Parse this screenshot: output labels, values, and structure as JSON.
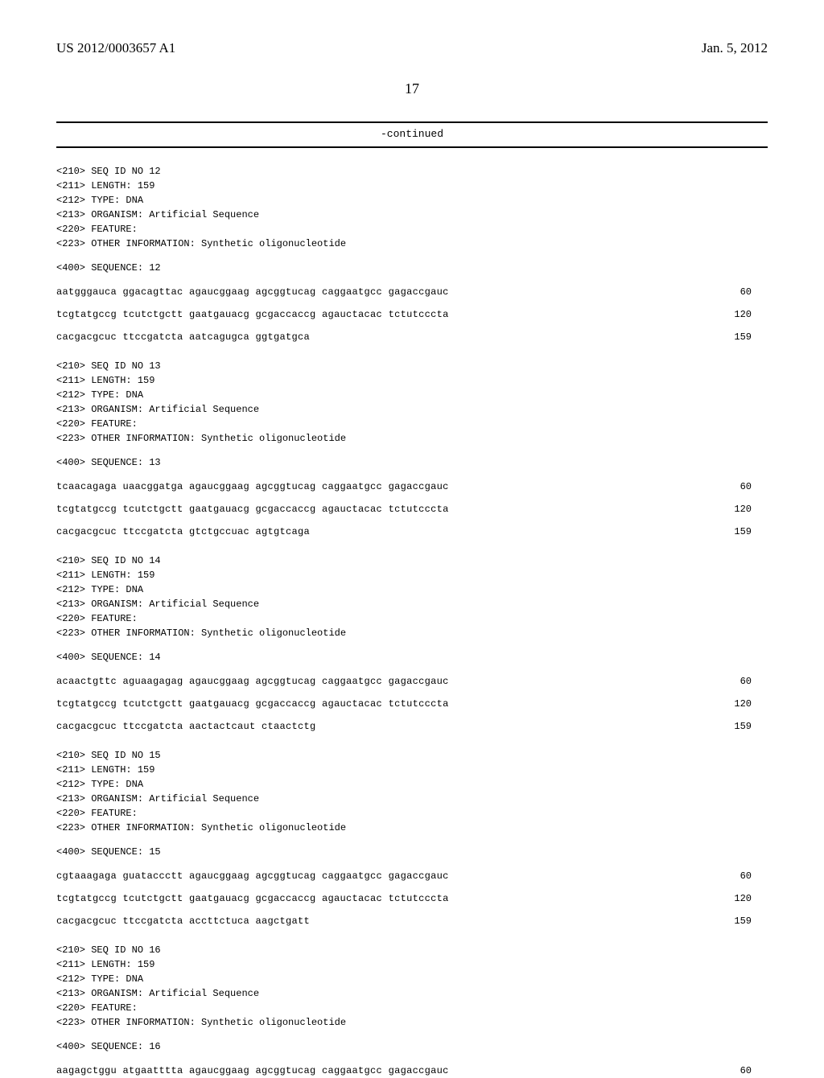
{
  "header": {
    "pub_number": "US 2012/0003657 A1",
    "pub_date": "Jan. 5, 2012",
    "page_num": "17"
  },
  "continued_label": "-continued",
  "sequences": [
    {
      "id": "12",
      "length": "159",
      "type": "DNA",
      "organism": "Artificial Sequence",
      "feature": "",
      "other_info": "Synthetic oligonucleotide",
      "rows": [
        {
          "text": "aatgggauca ggacagttac agaucggaag agcggtucag caggaatgcc gagaccgauc",
          "pos": "60"
        },
        {
          "text": "tcgtatgccg tcutctgctt gaatgauacg gcgaccaccg agauctacac tctutcccta",
          "pos": "120"
        },
        {
          "text": "cacgacgcuc ttccgatcta aatcagugca ggtgatgca",
          "pos": "159"
        }
      ]
    },
    {
      "id": "13",
      "length": "159",
      "type": "DNA",
      "organism": "Artificial Sequence",
      "feature": "",
      "other_info": "Synthetic oligonucleotide",
      "rows": [
        {
          "text": "tcaacagaga uaacggatga agaucggaag agcggtucag caggaatgcc gagaccgauc",
          "pos": "60"
        },
        {
          "text": "tcgtatgccg tcutctgctt gaatgauacg gcgaccaccg agauctacac tctutcccta",
          "pos": "120"
        },
        {
          "text": "cacgacgcuc ttccgatcta gtctgccuac agtgtcaga",
          "pos": "159"
        }
      ]
    },
    {
      "id": "14",
      "length": "159",
      "type": "DNA",
      "organism": "Artificial Sequence",
      "feature": "",
      "other_info": "Synthetic oligonucleotide",
      "rows": [
        {
          "text": "acaactgttc aguaagagag agaucggaag agcggtucag caggaatgcc gagaccgauc",
          "pos": "60"
        },
        {
          "text": "tcgtatgccg tcutctgctt gaatgauacg gcgaccaccg agauctacac tctutcccta",
          "pos": "120"
        },
        {
          "text": "cacgacgcuc ttccgatcta aactactcaut ctaactctg",
          "pos": "159"
        }
      ]
    },
    {
      "id": "15",
      "length": "159",
      "type": "DNA",
      "organism": "Artificial Sequence",
      "feature": "",
      "other_info": "Synthetic oligonucleotide",
      "rows": [
        {
          "text": "cgtaaagaga guataccctt agaucggaag agcggtucag caggaatgcc gagaccgauc",
          "pos": "60"
        },
        {
          "text": "tcgtatgccg tcutctgctt gaatgauacg gcgaccaccg agauctacac tctutcccta",
          "pos": "120"
        },
        {
          "text": "cacgacgcuc ttccgatcta accttctuca aagctgatt",
          "pos": "159"
        }
      ]
    },
    {
      "id": "16",
      "length": "159",
      "type": "DNA",
      "organism": "Artificial Sequence",
      "feature": "",
      "other_info": "Synthetic oligonucleotide",
      "rows": [
        {
          "text": "aagagctggu atgaatttta agaucggaag agcggtucag caggaatgcc gagaccgauc",
          "pos": "60"
        }
      ]
    }
  ]
}
